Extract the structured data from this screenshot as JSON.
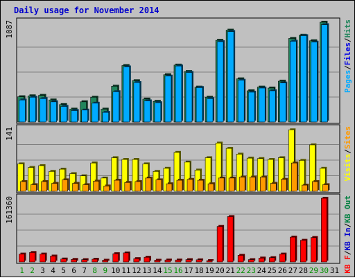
{
  "title": "Daily usage for November 2014",
  "days": [
    "1",
    "2",
    "3",
    "4",
    "5",
    "6",
    "7",
    "8",
    "9",
    "10",
    "11",
    "12",
    "13",
    "14",
    "15",
    "16",
    "17",
    "18",
    "19",
    "20",
    "21",
    "22",
    "23",
    "24",
    "25",
    "26",
    "27",
    "28",
    "29",
    "30",
    "31"
  ],
  "weekend_days": [
    "1",
    "2",
    "8",
    "9",
    "15",
    "16",
    "22",
    "23",
    "29",
    "30"
  ],
  "colors": {
    "background": "#c0c0c0",
    "title": "#0000cc",
    "hits": "#21855c",
    "files": "#0000e6",
    "pages": "#00aaff",
    "visits": "#ffff00",
    "sites": "#ff9a00",
    "kbin": "#0000cc",
    "kbout": "#007f3f",
    "kbf": "#ff0000",
    "day_label": "#000000",
    "weekend_label": "#009000"
  },
  "chart_data": [
    {
      "type": "bar",
      "panel": "top",
      "max_label": "1087",
      "ylim": [
        0,
        1087
      ],
      "legend": [
        "Pages",
        "/",
        "Files",
        "/",
        "Hits"
      ],
      "series": [
        {
          "name": "Hits",
          "values": [
            275,
            285,
            290,
            240,
            190,
            140,
            220,
            270,
            140,
            390,
            615,
            450,
            250,
            225,
            515,
            620,
            550,
            380,
            270,
            890,
            1000,
            470,
            340,
            380,
            370,
            445,
            910,
            945,
            885,
            1087,
            0
          ]
        },
        {
          "name": "Files",
          "values": [
            275,
            285,
            290,
            240,
            190,
            140,
            220,
            270,
            140,
            390,
            615,
            450,
            250,
            225,
            515,
            620,
            550,
            380,
            270,
            890,
            1000,
            470,
            340,
            380,
            370,
            445,
            910,
            945,
            885,
            1087,
            0
          ]
        },
        {
          "name": "Pages",
          "values": [
            240,
            270,
            255,
            220,
            170,
            125,
            130,
            205,
            105,
            330,
            600,
            430,
            230,
            210,
            500,
            610,
            540,
            375,
            255,
            875,
            985,
            455,
            325,
            370,
            340,
            425,
            880,
            940,
            870,
            1060,
            0
          ]
        }
      ]
    },
    {
      "type": "bar",
      "panel": "middle",
      "max_label": "141",
      "ylim": [
        0,
        141
      ],
      "legend": [
        "Visits",
        "/",
        "Sites"
      ],
      "series": [
        {
          "name": "Visits",
          "values": [
            62,
            54,
            58,
            45,
            50,
            40,
            35,
            64,
            30,
            76,
            72,
            72,
            62,
            45,
            52,
            88,
            66,
            48,
            76,
            109,
            97,
            84,
            75,
            74,
            72,
            76,
            139,
            70,
            105,
            52,
            0
          ]
        },
        {
          "name": "Sites",
          "values": [
            22,
            15,
            22,
            18,
            26,
            18,
            15,
            23,
            12,
            25,
            20,
            22,
            30,
            26,
            17,
            25,
            27,
            25,
            17,
            30,
            30,
            32,
            32,
            32,
            18,
            27,
            64,
            14,
            22,
            15,
            0
          ]
        }
      ]
    },
    {
      "type": "bar",
      "panel": "bottom",
      "max_label": "161360",
      "ylim": [
        0,
        161360
      ],
      "legend": [
        "KB F",
        "/",
        "KB In",
        "/",
        "KB Out"
      ],
      "series": [
        {
          "name": "KB F",
          "values": [
            20000,
            24000,
            20000,
            15000,
            7500,
            6500,
            6000,
            7000,
            4500,
            21000,
            23000,
            8500,
            12000,
            4500,
            5000,
            5000,
            6000,
            5500,
            3500,
            90000,
            115000,
            17000,
            6000,
            10000,
            11000,
            20000,
            63000,
            55000,
            62000,
            161360,
            0
          ]
        }
      ]
    }
  ]
}
